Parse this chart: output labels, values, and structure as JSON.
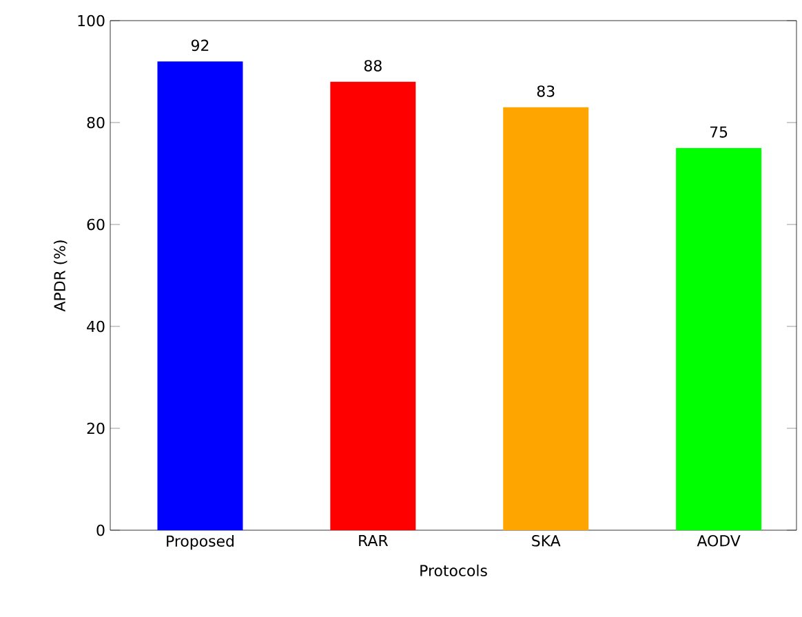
{
  "chart_data": {
    "type": "bar",
    "xlabel": "Protocols",
    "ylabel": "APDR (%)",
    "categories": [
      "Proposed",
      "RAR",
      "SKA",
      "AODV"
    ],
    "values": [
      92,
      88,
      83,
      75
    ],
    "colors": [
      "#0000ff",
      "#ff0000",
      "#ffa500",
      "#00ff00"
    ],
    "ylim": [
      0,
      100
    ],
    "yticks": [
      0,
      20,
      40,
      60,
      80,
      100
    ],
    "data_labels": true
  }
}
